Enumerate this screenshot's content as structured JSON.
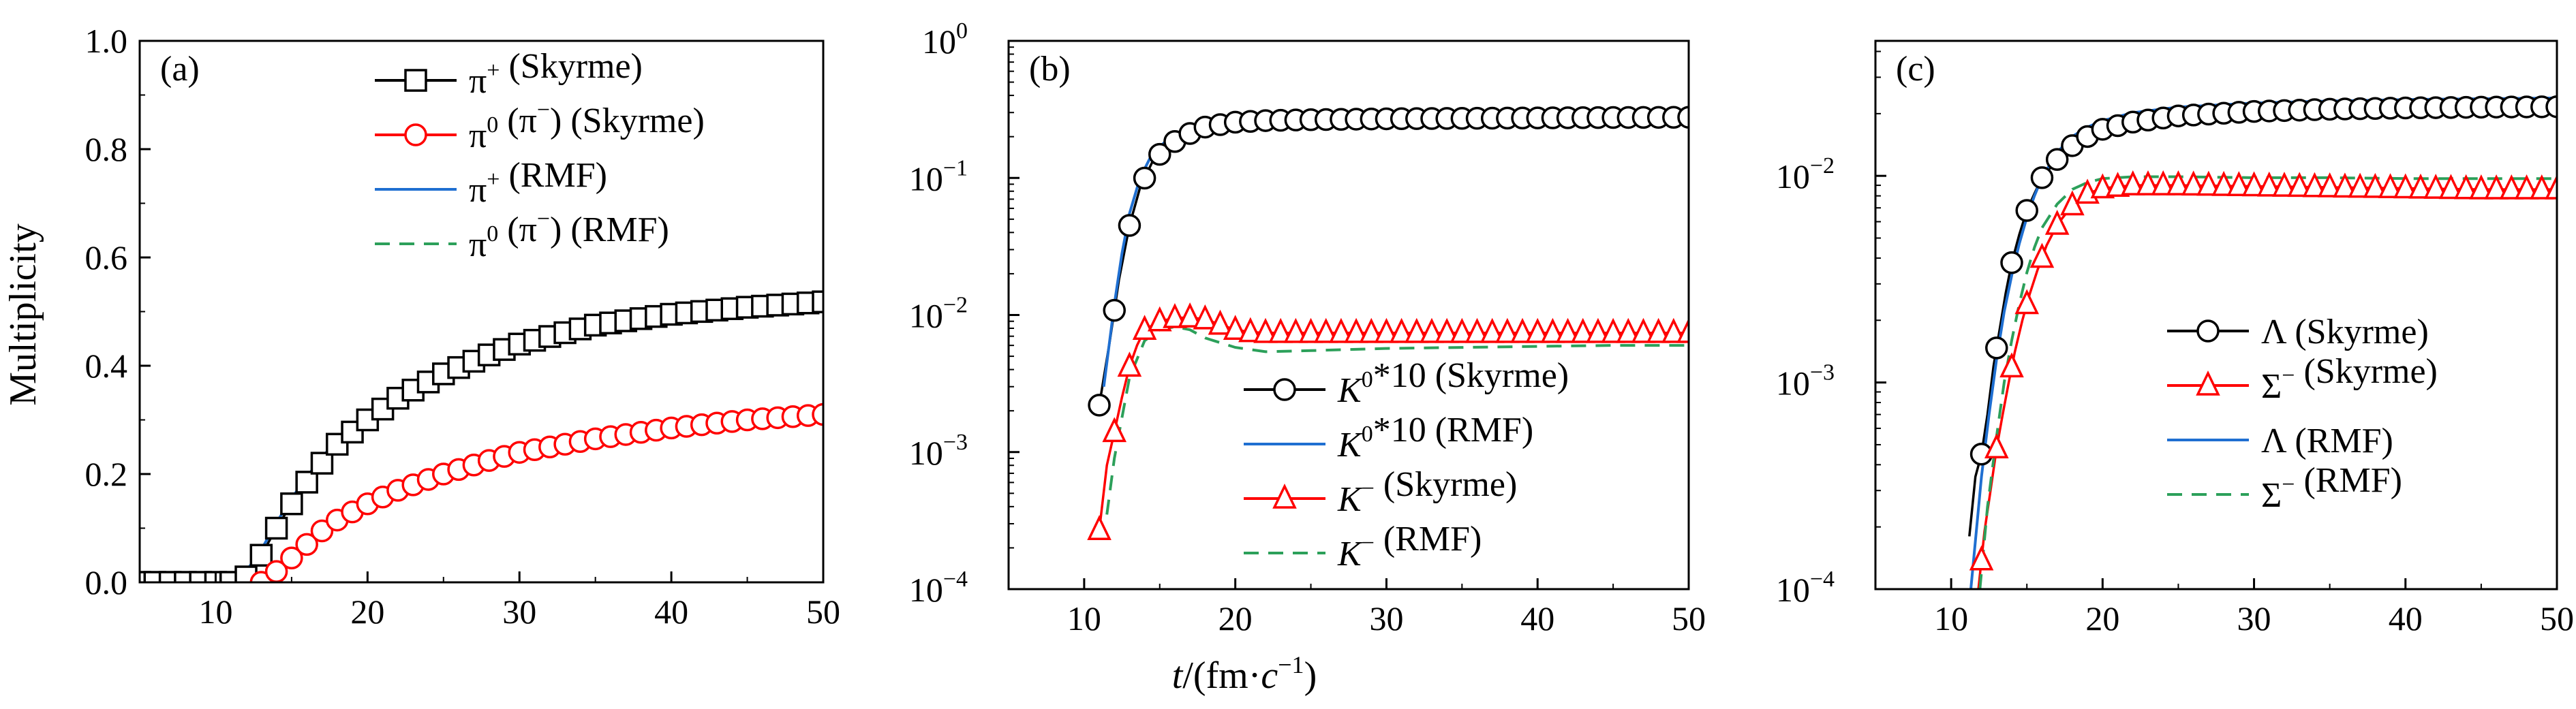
{
  "figure": {
    "y_axis_title": "Multiplicity",
    "x_axis_title": {
      "t": "t",
      "open": "/(fm·",
      "c": "c",
      "sup": "−1",
      "close": ")"
    }
  },
  "colors": {
    "black": "#000000",
    "red": "#ff0000",
    "blue": "#1f6fd1",
    "green": "#2ca05a"
  },
  "chart_data": [
    {
      "id": "a",
      "panel_label": "(a)",
      "type": "line",
      "xlim": [
        5,
        50
      ],
      "ylim": [
        0,
        1.0
      ],
      "y_scale": "linear",
      "xticks": [
        10,
        20,
        30,
        40,
        50
      ],
      "yticks": [
        0.0,
        0.2,
        0.4,
        0.6,
        0.8,
        1.0
      ],
      "ytick_labels": [
        "0.0",
        "0.2",
        "0.4",
        "0.6",
        "0.8",
        "1.0"
      ],
      "grid": false,
      "legend_position": "top-right",
      "series": [
        {
          "name": "π⁺ (Skyrme)",
          "legend": {
            "base": "π",
            "sup": "+",
            "tail": " (Skyrme)"
          },
          "color": "#000000",
          "marker": "square",
          "style": "solid",
          "x": [
            5,
            8,
            10,
            11,
            12,
            13,
            14,
            15,
            16,
            17,
            18,
            20,
            22,
            25,
            28,
            30,
            35,
            40,
            45,
            50
          ],
          "y": [
            0.0,
            0.0,
            0.0,
            0.0,
            0.01,
            0.05,
            0.1,
            0.145,
            0.185,
            0.22,
            0.255,
            0.3,
            0.34,
            0.385,
            0.42,
            0.44,
            0.475,
            0.495,
            0.508,
            0.518
          ]
        },
        {
          "name": "π⁰ (π⁻) (Skyrme)",
          "legend": {
            "base": "π",
            "sup": "0",
            "paren": "π",
            "paren_sup": "−",
            "tail": " (Skyrme)"
          },
          "color": "#ff0000",
          "marker": "circle",
          "style": "solid",
          "x": [
            13,
            14,
            15,
            16,
            17,
            18,
            20,
            22,
            25,
            28,
            30,
            35,
            40,
            45,
            50
          ],
          "y": [
            0.0,
            0.02,
            0.045,
            0.07,
            0.095,
            0.115,
            0.145,
            0.17,
            0.2,
            0.225,
            0.24,
            0.265,
            0.285,
            0.3,
            0.31
          ]
        },
        {
          "name": "π⁺ (RMF)",
          "legend": {
            "base": "π",
            "sup": "+",
            "tail": " (RMF)"
          },
          "color": "#1f6fd1",
          "marker": "none",
          "style": "solid",
          "x": [
            10,
            11,
            12,
            13,
            14,
            15,
            16,
            17,
            18,
            20,
            22,
            25,
            28,
            30,
            35,
            40,
            45,
            50
          ],
          "y": [
            0.0,
            0.0,
            0.02,
            0.06,
            0.11,
            0.155,
            0.195,
            0.23,
            0.265,
            0.31,
            0.35,
            0.395,
            0.43,
            0.45,
            0.483,
            0.503,
            0.517,
            0.528
          ]
        },
        {
          "name": "π⁰ (π⁻) (RMF)",
          "legend": {
            "base": "π",
            "sup": "0",
            "paren": "π",
            "paren_sup": "−",
            "tail": " (RMF)"
          },
          "color": "#2ca05a",
          "marker": "none",
          "style": "dashed",
          "x": [
            12.5,
            13.5,
            15,
            16,
            17,
            18,
            20,
            22,
            25,
            28,
            30,
            35,
            40,
            45,
            50
          ],
          "y": [
            0.0,
            0.015,
            0.045,
            0.068,
            0.09,
            0.11,
            0.14,
            0.165,
            0.195,
            0.22,
            0.235,
            0.262,
            0.28,
            0.295,
            0.303
          ]
        }
      ]
    },
    {
      "id": "b",
      "panel_label": "(b)",
      "type": "line",
      "xlim": [
        5,
        50
      ],
      "ylim": [
        0.0001,
        1
      ],
      "y_scale": "log",
      "xticks": [
        10,
        20,
        30,
        40,
        50
      ],
      "yticks": [
        0.0001,
        0.001,
        0.01,
        0.1,
        1
      ],
      "ytick_labels": [
        {
          "base": "10",
          "sup": "−4"
        },
        {
          "base": "10",
          "sup": "−3"
        },
        {
          "base": "10",
          "sup": "−2"
        },
        {
          "base": "10",
          "sup": "−1"
        },
        {
          "base": "10",
          "sup": "0"
        }
      ],
      "grid": false,
      "legend_position": "bottom-right",
      "series": [
        {
          "name": "K⁰*10 (Skyrme)",
          "legend": {
            "base": "K",
            "sup": "0",
            "tail": "*10 (Skyrme)"
          },
          "color": "#000000",
          "marker": "circle",
          "style": "solid",
          "x": [
            11,
            11.7,
            12.3,
            13,
            13.7,
            14.5,
            15.5,
            16.5,
            18,
            20,
            22,
            25,
            30,
            35,
            40,
            45,
            50
          ],
          "y": [
            0.0022,
            0.0065,
            0.018,
            0.045,
            0.085,
            0.13,
            0.17,
            0.2,
            0.235,
            0.255,
            0.262,
            0.266,
            0.27,
            0.272,
            0.274,
            0.276,
            0.277
          ]
        },
        {
          "name": "K⁰*10 (RMF)",
          "legend": {
            "base": "K",
            "sup": "0",
            "tail": "*10 (RMF)"
          },
          "color": "#1f6fd1",
          "marker": "none",
          "style": "solid",
          "x": [
            11.3,
            12,
            12.5,
            13,
            13.7,
            14.5,
            15.5,
            16.5,
            18,
            20,
            22,
            25,
            30,
            35,
            40,
            45,
            50
          ],
          "y": [
            0.003,
            0.012,
            0.028,
            0.055,
            0.1,
            0.15,
            0.19,
            0.22,
            0.25,
            0.27,
            0.278,
            0.283,
            0.288,
            0.292,
            0.295,
            0.297,
            0.298
          ]
        },
        {
          "name": "K⁻ (Skyrme)",
          "legend": {
            "base": "K",
            "sup": "−",
            "tail": " (Skyrme)"
          },
          "color": "#ff0000",
          "marker": "triangle",
          "style": "solid",
          "x": [
            11,
            11.5,
            12,
            12.5,
            13,
            13.5,
            14,
            15,
            16,
            17,
            18,
            19,
            20,
            21,
            22,
            25,
            30,
            35,
            40,
            45,
            50
          ],
          "y": [
            0.00027,
            0.0008,
            0.0014,
            0.0025,
            0.0042,
            0.006,
            0.0078,
            0.009,
            0.0095,
            0.0096,
            0.0093,
            0.0085,
            0.0078,
            0.0075,
            0.0074,
            0.0074,
            0.0074,
            0.0074,
            0.0074,
            0.0074,
            0.0074
          ]
        },
        {
          "name": "K⁻ (RMF)",
          "legend": {
            "base": "K",
            "sup": "−",
            "tail": " (RMF)"
          },
          "color": "#2ca05a",
          "marker": "none",
          "style": "dashed",
          "x": [
            11.5,
            12,
            13,
            14,
            15,
            16,
            17,
            18,
            20,
            22,
            25,
            30,
            35,
            40,
            45,
            50
          ],
          "y": [
            0.00035,
            0.0009,
            0.0035,
            0.0065,
            0.0078,
            0.0082,
            0.0078,
            0.0068,
            0.0058,
            0.0054,
            0.0055,
            0.0057,
            0.0058,
            0.0059,
            0.006,
            0.006
          ]
        }
      ]
    },
    {
      "id": "c",
      "panel_label": "(c)",
      "type": "line",
      "xlim": [
        5,
        50
      ],
      "ylim": [
        0.0001,
        0.045
      ],
      "y_scale": "log",
      "xticks": [
        10,
        20,
        30,
        40,
        50
      ],
      "yticks": [
        0.0001,
        0.001,
        0.01
      ],
      "ytick_labels": [
        {
          "base": "10",
          "sup": "−4"
        },
        {
          "base": "10",
          "sup": "−3"
        },
        {
          "base": "10",
          "sup": "−2"
        }
      ],
      "grid": false,
      "legend_position": "bottom-right",
      "series": [
        {
          "name": "Λ (Skyrme)",
          "legend": {
            "base": "Λ",
            "sup": "",
            "tail": " (Skyrme)"
          },
          "color": "#000000",
          "marker": "circle",
          "style": "solid",
          "x": [
            11.2,
            11.6,
            12,
            12.4,
            12.8,
            13.2,
            13.6,
            14,
            14.5,
            15,
            15.5,
            16,
            17,
            18,
            19,
            20,
            22,
            25,
            30,
            35,
            40,
            45,
            50
          ],
          "y": [
            0.00018,
            0.00035,
            0.00045,
            0.0007,
            0.0012,
            0.0018,
            0.0027,
            0.0038,
            0.0052,
            0.0068,
            0.0082,
            0.0098,
            0.012,
            0.014,
            0.0155,
            0.0168,
            0.0182,
            0.0195,
            0.0205,
            0.021,
            0.0213,
            0.0215,
            0.0216
          ]
        },
        {
          "name": "Σ⁻ (Skyrme)",
          "legend": {
            "base": "Σ",
            "sup": "−",
            "tail": " (Skyrme)"
          },
          "color": "#ff0000",
          "marker": "triangle",
          "style": "solid",
          "x": [
            11.8,
            12.2,
            12.6,
            13,
            13.4,
            13.8,
            14.2,
            14.7,
            15.2,
            15.7,
            16.3,
            17,
            18,
            19,
            20,
            22,
            25,
            30,
            35,
            40,
            45,
            50
          ],
          "y": [
            0.0001,
            0.00019,
            0.0003,
            0.00048,
            0.0007,
            0.001,
            0.0014,
            0.002,
            0.0027,
            0.0035,
            0.0046,
            0.0058,
            0.0072,
            0.0082,
            0.0087,
            0.009,
            0.009,
            0.0089,
            0.0088,
            0.0087,
            0.0086,
            0.0086
          ]
        },
        {
          "name": "Λ (RMF)",
          "legend": {
            "base": "Λ",
            "sup": "",
            "tail": " (RMF)"
          },
          "color": "#1f6fd1",
          "marker": "none",
          "style": "solid",
          "x": [
            11.3,
            12,
            12.5,
            13,
            13.5,
            14,
            14.5,
            15,
            15.5,
            16,
            17,
            18,
            19,
            20,
            22,
            25,
            30,
            35,
            40,
            45,
            50
          ],
          "y": [
            0.0001,
            0.00035,
            0.0007,
            0.0013,
            0.0022,
            0.0033,
            0.0047,
            0.0063,
            0.008,
            0.0098,
            0.013,
            0.0155,
            0.0172,
            0.0185,
            0.0202,
            0.0215,
            0.0225,
            0.023,
            0.0234,
            0.0236,
            0.0238
          ]
        },
        {
          "name": "Σ⁻ (RMF)",
          "legend": {
            "base": "Σ",
            "sup": "−",
            "tail": " (RMF)"
          },
          "color": "#2ca05a",
          "marker": "none",
          "style": "dashed",
          "x": [
            11.9,
            12.4,
            13,
            13.5,
            14,
            14.5,
            15,
            15.5,
            16,
            17,
            18,
            19,
            20,
            22,
            25,
            30,
            35,
            40,
            45,
            50
          ],
          "y": [
            0.0001,
            0.00025,
            0.00055,
            0.001,
            0.0016,
            0.0024,
            0.0034,
            0.0045,
            0.0056,
            0.0073,
            0.0086,
            0.0093,
            0.0097,
            0.0099,
            0.0099,
            0.0098,
            0.0098,
            0.0097,
            0.0097,
            0.0097
          ]
        }
      ]
    }
  ]
}
